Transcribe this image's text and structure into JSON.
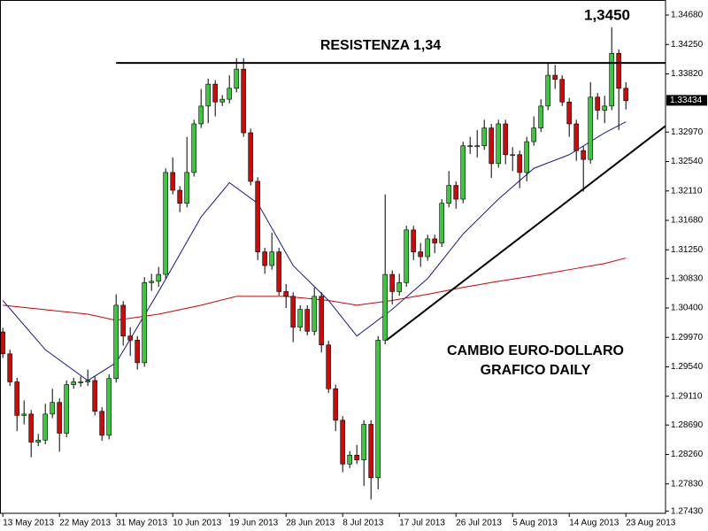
{
  "chart_data": {
    "type": "candlestick",
    "up_color": "#32cd32",
    "down_color": "#e00000",
    "xlim": [
      -0.4,
      93.6
    ],
    "ylim": [
      1.274,
      1.349
    ],
    "last_price": 1.33434,
    "xticks": [
      {
        "value": 0,
        "label": "13 May 2013"
      },
      {
        "value": 8,
        "label": "22 May 2013"
      },
      {
        "value": 16,
        "label": "31 May 2013"
      },
      {
        "value": 24,
        "label": "10 Jun 2013"
      },
      {
        "value": 32,
        "label": "19 Jun 2013"
      },
      {
        "value": 40,
        "label": "28 Jun 2013"
      },
      {
        "value": 48,
        "label": "8 Jul 2013"
      },
      {
        "value": 56,
        "label": "17 Jul 2013"
      },
      {
        "value": 64,
        "label": "26 Jul 2013"
      },
      {
        "value": 72,
        "label": "5 Aug 2013"
      },
      {
        "value": 80,
        "label": "14 Aug 2013"
      },
      {
        "value": 88,
        "label": "23 Aug 2013"
      }
    ],
    "yticks": [
      {
        "value": 1.3468,
        "label": "1.34680"
      },
      {
        "value": 1.3425,
        "label": "1.34250"
      },
      {
        "value": 1.3382,
        "label": "1.33820"
      },
      {
        "value": 1.3297,
        "label": "1.32970"
      },
      {
        "value": 1.3254,
        "label": "1.32540"
      },
      {
        "value": 1.3211,
        "label": "1.32110"
      },
      {
        "value": 1.3168,
        "label": "1.31680"
      },
      {
        "value": 1.3125,
        "label": "1.31250"
      },
      {
        "value": 1.3083,
        "label": "1.30830"
      },
      {
        "value": 1.304,
        "label": "1.30400"
      },
      {
        "value": 1.2997,
        "label": "1.29970"
      },
      {
        "value": 1.2954,
        "label": "1.29540"
      },
      {
        "value": 1.2911,
        "label": "1.29110"
      },
      {
        "value": 1.2869,
        "label": "1.28690"
      },
      {
        "value": 1.2826,
        "label": "1.28260"
      },
      {
        "value": 1.2783,
        "label": "1.27830"
      },
      {
        "value": 1.2743,
        "label": "1.27430"
      }
    ],
    "x": [
      0,
      1,
      2,
      3,
      4,
      5,
      6,
      7,
      8,
      9,
      10,
      11,
      12,
      13,
      14,
      15,
      16,
      17,
      18,
      19,
      20,
      21,
      22,
      23,
      24,
      25,
      26,
      27,
      28,
      29,
      30,
      31,
      32,
      33,
      34,
      35,
      36,
      37,
      38,
      39,
      40,
      41,
      42,
      43,
      44,
      45,
      46,
      47,
      48,
      49,
      50,
      51,
      52,
      53,
      54,
      55,
      56,
      57,
      58,
      59,
      60,
      61,
      62,
      63,
      64,
      65,
      66,
      67,
      68,
      69,
      70,
      71,
      72,
      73,
      74,
      75,
      76,
      77,
      78,
      79,
      80,
      81,
      82,
      83,
      84,
      85,
      86,
      87,
      88
    ],
    "candles": [
      [
        1.3005,
        1.3011,
        1.2967,
        1.2973
      ],
      [
        1.2973,
        1.2979,
        1.2926,
        1.2932
      ],
      [
        1.2932,
        1.2938,
        1.286,
        1.2883
      ],
      [
        1.2883,
        1.2905,
        1.287,
        1.2885
      ],
      [
        1.2885,
        1.2891,
        1.2822,
        1.2844
      ],
      [
        1.2844,
        1.2856,
        1.2838,
        1.2847
      ],
      [
        1.2847,
        1.29,
        1.2841,
        1.2885
      ],
      [
        1.2885,
        1.2922,
        1.2879,
        1.2902
      ],
      [
        1.2902,
        1.2908,
        1.283,
        1.2857
      ],
      [
        1.2857,
        1.2934,
        1.2851,
        1.2928
      ],
      [
        1.2928,
        1.2938,
        1.2922,
        1.2932
      ],
      [
        1.2932,
        1.294,
        1.2925,
        1.2932
      ],
      [
        1.2932,
        1.295,
        1.2926,
        1.2934
      ],
      [
        1.2934,
        1.294,
        1.2883,
        1.2889
      ],
      [
        1.2889,
        1.2895,
        1.2846,
        1.2854
      ],
      [
        1.2854,
        1.2943,
        1.2848,
        1.2937
      ],
      [
        1.2937,
        1.306,
        1.2931,
        1.3044
      ],
      [
        1.3044,
        1.305,
        1.2985,
        1.2999
      ],
      [
        1.2999,
        1.3012,
        1.297,
        1.2993
      ],
      [
        1.2993,
        1.2999,
        1.295,
        1.296
      ],
      [
        1.296,
        1.3085,
        1.2954,
        1.3077
      ],
      [
        1.3077,
        1.309,
        1.3065,
        1.3079
      ],
      [
        1.3079,
        1.31,
        1.3071,
        1.3089
      ],
      [
        1.3089,
        1.3244,
        1.3083,
        1.3238
      ],
      [
        1.3238,
        1.326,
        1.3206,
        1.3212
      ],
      [
        1.3212,
        1.3218,
        1.318,
        1.3193
      ],
      [
        1.3193,
        1.329,
        1.3187,
        1.3238
      ],
      [
        1.3238,
        1.3315,
        1.3232,
        1.3309
      ],
      [
        1.3309,
        1.336,
        1.3303,
        1.3335
      ],
      [
        1.3335,
        1.3375,
        1.331,
        1.3367
      ],
      [
        1.3367,
        1.3373,
        1.332,
        1.3341
      ],
      [
        1.3341,
        1.3351,
        1.3335,
        1.3345
      ],
      [
        1.3345,
        1.338,
        1.3339,
        1.3361
      ],
      [
        1.3361,
        1.3405,
        1.3355,
        1.3389
      ],
      [
        1.3389,
        1.3405,
        1.329,
        1.3296
      ],
      [
        1.3296,
        1.3302,
        1.3219,
        1.3225
      ],
      [
        1.3225,
        1.3231,
        1.311,
        1.3122
      ],
      [
        1.3122,
        1.3128,
        1.309,
        1.3102
      ],
      [
        1.3102,
        1.315,
        1.3096,
        1.3122
      ],
      [
        1.3122,
        1.3128,
        1.3058,
        1.3064
      ],
      [
        1.3064,
        1.3075,
        1.304,
        1.3057
      ],
      [
        1.3057,
        1.3063,
        1.299,
        1.3012
      ],
      [
        1.3012,
        1.3044,
        1.3006,
        1.3038
      ],
      [
        1.3038,
        1.3044,
        1.3,
        1.3006
      ],
      [
        1.3006,
        1.307,
        1.3,
        1.3057
      ],
      [
        1.3057,
        1.3063,
        1.2975,
        1.2986
      ],
      [
        1.2986,
        1.2992,
        1.2916,
        1.2922
      ],
      [
        1.2922,
        1.2928,
        1.286,
        1.2876
      ],
      [
        1.2876,
        1.2882,
        1.28,
        1.2812
      ],
      [
        1.2812,
        1.2831,
        1.2806,
        1.2825
      ],
      [
        1.2825,
        1.284,
        1.2812,
        1.2818
      ],
      [
        1.2818,
        1.2876,
        1.278,
        1.287
      ],
      [
        1.287,
        1.2876,
        1.276,
        1.2792
      ],
      [
        1.2792,
        1.2999,
        1.2775,
        1.2993
      ],
      [
        1.2993,
        1.3206,
        1.2987,
        1.3089
      ],
      [
        1.3089,
        1.3095,
        1.3045,
        1.3064
      ],
      [
        1.3064,
        1.309,
        1.3058,
        1.3077
      ],
      [
        1.3077,
        1.316,
        1.3071,
        1.3154
      ],
      [
        1.3154,
        1.316,
        1.311,
        1.3122
      ],
      [
        1.3122,
        1.3135,
        1.31,
        1.3115
      ],
      [
        1.3115,
        1.3147,
        1.3109,
        1.3141
      ],
      [
        1.3141,
        1.3147,
        1.312,
        1.3135
      ],
      [
        1.3135,
        1.3199,
        1.3129,
        1.3193
      ],
      [
        1.3193,
        1.324,
        1.3187,
        1.3219
      ],
      [
        1.3219,
        1.3225,
        1.3185,
        1.3199
      ],
      [
        1.3199,
        1.3283,
        1.3193,
        1.3277
      ],
      [
        1.3277,
        1.329,
        1.3265,
        1.3277
      ],
      [
        1.3277,
        1.33,
        1.326,
        1.3277
      ],
      [
        1.3277,
        1.3315,
        1.3271,
        1.3303
      ],
      [
        1.3303,
        1.3309,
        1.323,
        1.3251
      ],
      [
        1.3251,
        1.3315,
        1.3245,
        1.3309
      ],
      [
        1.3309,
        1.3315,
        1.325,
        1.3264
      ],
      [
        1.3264,
        1.3275,
        1.324,
        1.3264
      ],
      [
        1.3264,
        1.327,
        1.3215,
        1.3238
      ],
      [
        1.3238,
        1.329,
        1.3225,
        1.3283
      ],
      [
        1.3283,
        1.332,
        1.3277,
        1.3303
      ],
      [
        1.3303,
        1.3345,
        1.3297,
        1.3335
      ],
      [
        1.3335,
        1.3398,
        1.3329,
        1.338
      ],
      [
        1.338,
        1.3395,
        1.336,
        1.3374
      ],
      [
        1.3374,
        1.338,
        1.3335,
        1.3341
      ],
      [
        1.3341,
        1.3347,
        1.329,
        1.3309
      ],
      [
        1.3309,
        1.3315,
        1.3255,
        1.327
      ],
      [
        1.327,
        1.3276,
        1.321,
        1.3257
      ],
      [
        1.3257,
        1.337,
        1.3251,
        1.3348
      ],
      [
        1.3348,
        1.3354,
        1.3315,
        1.3329
      ],
      [
        1.3329,
        1.335,
        1.331,
        1.3335
      ],
      [
        1.3335,
        1.345,
        1.3329,
        1.3412
      ],
      [
        1.3412,
        1.3418,
        1.33,
        1.3361
      ],
      [
        1.3361,
        1.337,
        1.333,
        1.3343
      ]
    ],
    "series": [
      {
        "color": "#1a1a8c",
        "x": [
          0,
          6,
          12,
          16,
          22,
          28,
          32,
          36,
          41,
          46,
          50,
          55,
          60,
          65,
          70,
          75,
          80,
          85,
          88
        ],
        "values": [
          1.3051,
          1.2979,
          1.2934,
          1.296,
          1.3064,
          1.3173,
          1.3223,
          1.3193,
          1.3102,
          1.3051,
          1.2999,
          1.3038,
          1.3083,
          1.3148,
          1.3199,
          1.3244,
          1.3264,
          1.3296,
          1.3312
        ]
      },
      {
        "color": "#cc0000",
        "x": [
          0,
          12,
          16,
          22,
          28,
          33,
          40,
          46,
          50,
          55,
          60,
          65,
          70,
          75,
          80,
          85,
          88
        ],
        "values": [
          1.3044,
          1.3031,
          1.3022,
          1.3031,
          1.3044,
          1.3057,
          1.3057,
          1.3051,
          1.3044,
          1.3051,
          1.306,
          1.307,
          1.3079,
          1.3087,
          1.3096,
          1.3105,
          1.3113
        ]
      }
    ],
    "lines": [
      {
        "x": [
          16,
          93.6
        ],
        "y": [
          1.3398,
          1.3398
        ]
      },
      {
        "x": [
          54.2,
          93.6
        ],
        "y": [
          1.2993,
          1.3306
        ]
      }
    ],
    "annotations": [
      "RESISTENZA 1,34",
      "1,3450",
      "CAMBIO EURO-DOLLARO",
      "GRAFICO DAILY"
    ]
  }
}
